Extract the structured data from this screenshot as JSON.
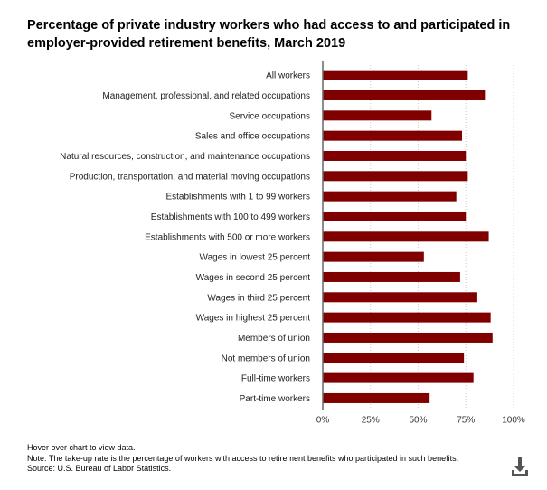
{
  "title": "Percentage of private industry workers who had access to and participated in employer-provided retirement benefits, March 2019",
  "notes": {
    "hover": "Hover over chart to view data.",
    "note": "Note: The take-up rate is the percentage of workers with access to retirement benefits who participated in such benefits.",
    "source": "Source: U.S. Bureau of Labor Statistics."
  },
  "download_icon": "download-icon",
  "colors": {
    "bar": "#800000",
    "axis": "#666666",
    "grid": "#cccccc"
  },
  "chart_data": {
    "type": "bar",
    "orientation": "horizontal",
    "categories": [
      "All workers",
      "Management, professional, and related occupations",
      "Service occupations",
      "Sales and office occupations",
      "Natural resources, construction, and maintenance occupations",
      "Production, transportation, and material moving occupations",
      "Establishments with 1 to 99 workers",
      "Establishments with 100 to 499 workers",
      "Establishments with 500 or more workers",
      "Wages in lowest 25 percent",
      "Wages in second 25 percent",
      "Wages in third 25 percent",
      "Wages in highest 25 percent",
      "Members of union",
      "Not members of union",
      "Full-time workers",
      "Part-time workers"
    ],
    "values": [
      76,
      85,
      57,
      73,
      75,
      76,
      70,
      75,
      87,
      53,
      72,
      81,
      88,
      89,
      74,
      79,
      56
    ],
    "xlim": [
      0,
      100
    ],
    "xticks": [
      "0%",
      "25%",
      "50%",
      "75%",
      "100%"
    ],
    "xtick_values": [
      0,
      25,
      50,
      75,
      100
    ],
    "grid": true
  }
}
